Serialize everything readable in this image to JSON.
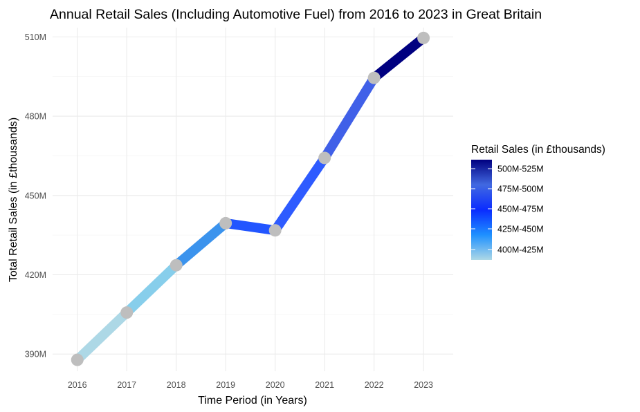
{
  "chart_data": {
    "type": "line",
    "title": "Annual Retail Sales (Including Automotive Fuel) from 2016 to 2023 in Great Britain",
    "xlabel": "Time Period (in Years)",
    "ylabel": "Total Retail Sales (in £thousands)",
    "x": [
      2016,
      2017,
      2018,
      2019,
      2020,
      2021,
      2022,
      2023
    ],
    "values": [
      387.8,
      405.7,
      423.6,
      439.5,
      436.8,
      464.2,
      494.5,
      509.6
    ],
    "x_ticks": [
      "2016",
      "2017",
      "2018",
      "2019",
      "2020",
      "2021",
      "2022",
      "2023"
    ],
    "y_ticks": [
      {
        "value": 390,
        "label": "390M"
      },
      {
        "value": 420,
        "label": "420M"
      },
      {
        "value": 450,
        "label": "450M"
      },
      {
        "value": 480,
        "label": "480M"
      },
      {
        "value": 510,
        "label": "510M"
      }
    ],
    "ylim": [
      383.5,
      513.5
    ],
    "xlim": [
      2015.5,
      2023.6
    ],
    "grid": true,
    "point_color": "#bebebe",
    "segment_colors": [
      "#add8e6",
      "#87ceeb",
      "#3b93ed",
      "#2255ff",
      "#2e5bff",
      "#4060e8",
      "#000080"
    ],
    "legend": {
      "title": "Retail Sales (in £thousands)",
      "position": "right",
      "labels": [
        "500M-525M",
        "475M-500M",
        "450M-475M",
        "425M-450M",
        "400M-425M"
      ],
      "gradient": [
        "#000080",
        "#4169e1",
        "#0a2cff",
        "#1e90ff",
        "#add8e6"
      ]
    }
  }
}
